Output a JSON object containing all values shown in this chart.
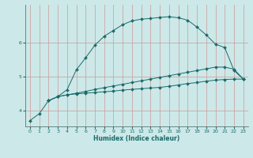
{
  "xlabel": "Humidex (Indice chaleur)",
  "bg_color": "#cce8e8",
  "line_color": "#1a6b6b",
  "grid_color": "#cc9999",
  "xlim": [
    -0.5,
    23.5
  ],
  "ylim": [
    3.55,
    7.1
  ],
  "yticks": [
    4,
    5,
    6
  ],
  "xticks": [
    0,
    1,
    2,
    3,
    4,
    5,
    6,
    7,
    8,
    9,
    10,
    11,
    12,
    13,
    14,
    15,
    16,
    17,
    18,
    19,
    20,
    21,
    22,
    23
  ],
  "line1_x": [
    0,
    1,
    2,
    3,
    4,
    5,
    6,
    7,
    8,
    9,
    10,
    11,
    12,
    13,
    14,
    15,
    16,
    17,
    18,
    19,
    20,
    21,
    22,
    23
  ],
  "line1_y": [
    3.72,
    3.92,
    4.3,
    4.42,
    4.47,
    4.5,
    4.52,
    4.54,
    4.56,
    4.58,
    4.61,
    4.63,
    4.65,
    4.67,
    4.69,
    4.72,
    4.76,
    4.8,
    4.83,
    4.87,
    4.9,
    4.92,
    4.93,
    4.93
  ],
  "line2_x": [
    2,
    3,
    4,
    5,
    6,
    7,
    8,
    9,
    10,
    11,
    12,
    13,
    14,
    15,
    16,
    17,
    18,
    19,
    20,
    21,
    22,
    23
  ],
  "line2_y": [
    4.3,
    4.42,
    4.47,
    4.52,
    4.57,
    4.63,
    4.68,
    4.73,
    4.78,
    4.83,
    4.88,
    4.93,
    4.98,
    5.03,
    5.08,
    5.13,
    5.18,
    5.23,
    5.28,
    5.28,
    5.22,
    4.93
  ],
  "line3_x": [
    2,
    3,
    4,
    5,
    6,
    7,
    8,
    9,
    10,
    11,
    12,
    13,
    14,
    15,
    16,
    17,
    18,
    19,
    20,
    21,
    22,
    23
  ],
  "line3_y": [
    4.3,
    4.42,
    4.62,
    5.2,
    5.55,
    5.92,
    6.18,
    6.35,
    6.52,
    6.63,
    6.68,
    6.7,
    6.73,
    6.75,
    6.72,
    6.65,
    6.45,
    6.22,
    5.95,
    5.85,
    5.18,
    4.93
  ],
  "markersize": 2.0
}
